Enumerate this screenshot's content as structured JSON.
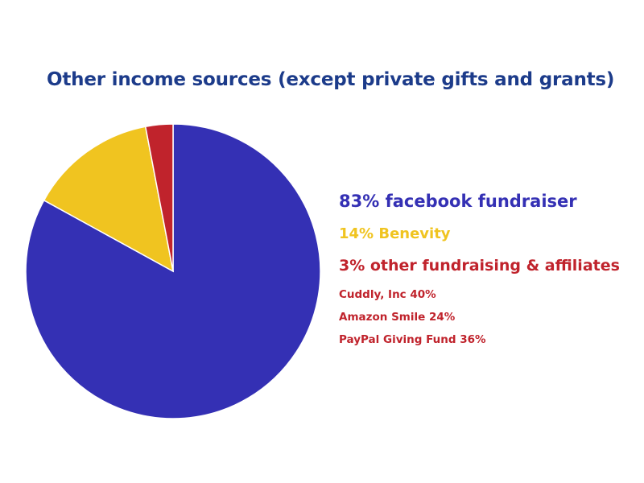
{
  "title": "Other income sources (except private gifts and grants)",
  "colors": {
    "title": "#1c3b8a",
    "facebook": "#3430b4",
    "benevity": "#f0c420",
    "other": "#c0232c"
  },
  "chart_data": {
    "type": "pie",
    "title": "Other income sources (except private gifts and grants)",
    "slices": [
      {
        "label": "83% facebook fundraiser",
        "value": 83,
        "color": "#3430b4"
      },
      {
        "label": "14% Benevity",
        "value": 14,
        "color": "#f0c420"
      },
      {
        "label": "3% other fundraising & affiliates",
        "value": 3,
        "color": "#c0232c"
      }
    ],
    "sub_breakdown": [
      {
        "label": "Cuddly, Inc 40%",
        "value": 40
      },
      {
        "label": "Amazon Smile 24%",
        "value": 24
      },
      {
        "label": "PayPal Giving Fund 36%",
        "value": 36
      }
    ],
    "legend_position": "right"
  }
}
